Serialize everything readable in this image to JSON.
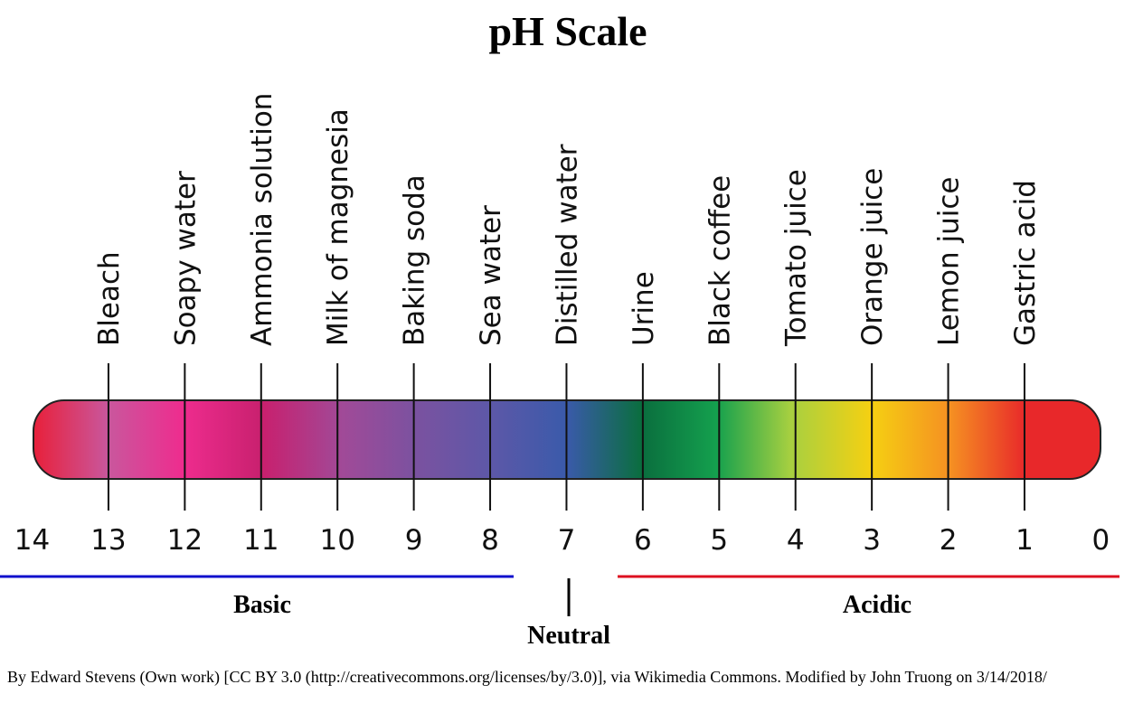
{
  "title": "pH Scale",
  "scale": {
    "ticks": [
      14,
      13,
      12,
      11,
      10,
      9,
      8,
      7,
      6,
      5,
      4,
      3,
      2,
      1,
      0
    ]
  },
  "substances": [
    {
      "label": "Bleach",
      "ph": 13
    },
    {
      "label": "Soapy water",
      "ph": 12
    },
    {
      "label": "Ammonia solution",
      "ph": 11
    },
    {
      "label": "Milk of magnesia",
      "ph": 10
    },
    {
      "label": "Baking soda",
      "ph": 9
    },
    {
      "label": "Sea water",
      "ph": 8
    },
    {
      "label": "Distilled water",
      "ph": 7
    },
    {
      "label": "Urine",
      "ph": 6
    },
    {
      "label": "Black coffee",
      "ph": 5
    },
    {
      "label": "Tomato juice",
      "ph": 4
    },
    {
      "label": "Orange juice",
      "ph": 3
    },
    {
      "label": "Lemon juice",
      "ph": 2
    },
    {
      "label": "Gastric acid",
      "ph": 1
    }
  ],
  "ranges": {
    "basic": "Basic",
    "neutral": "Neutral",
    "acidic": "Acidic"
  },
  "credit": "By Edward Stevens (Own work) [CC BY 3.0 (http://creativecommons.org/licenses/by/3.0)], via Wikimedia Commons. Modified by John Truong on 3/14/2018/"
}
